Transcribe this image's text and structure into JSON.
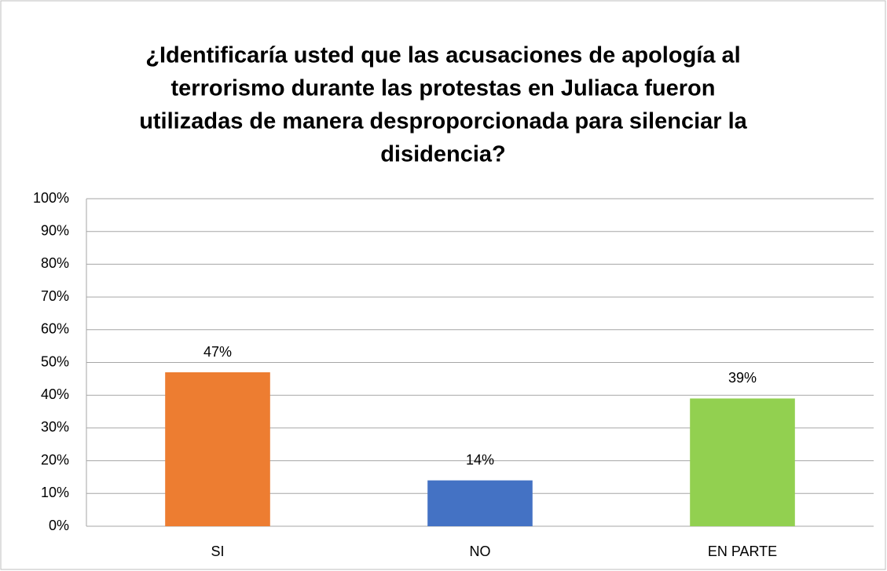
{
  "chart_data": {
    "type": "bar",
    "title": [
      "¿Identificaría usted que las acusaciones de apología al",
      "terrorismo durante las protestas en Juliaca fueron",
      "utilizadas de manera desproporcionada para silenciar la",
      "disidencia?"
    ],
    "categories": [
      "SI",
      "NO",
      "EN PARTE"
    ],
    "values": [
      47,
      14,
      39
    ],
    "value_labels": [
      "47%",
      "14%",
      "39%"
    ],
    "colors": [
      "#ed7d31",
      "#4472c4",
      "#92d050"
    ],
    "ylim": [
      0,
      100
    ],
    "yticks": [
      {
        "value": 0,
        "label": "0%"
      },
      {
        "value": 10,
        "label": "10%"
      },
      {
        "value": 20,
        "label": "20%"
      },
      {
        "value": 30,
        "label": "30%"
      },
      {
        "value": 40,
        "label": "40%"
      },
      {
        "value": 50,
        "label": "50%"
      },
      {
        "value": 60,
        "label": "60%"
      },
      {
        "value": 70,
        "label": "70%"
      },
      {
        "value": 80,
        "label": "80%"
      },
      {
        "value": 90,
        "label": "90%"
      },
      {
        "value": 100,
        "label": "100%"
      }
    ],
    "grid": true
  }
}
